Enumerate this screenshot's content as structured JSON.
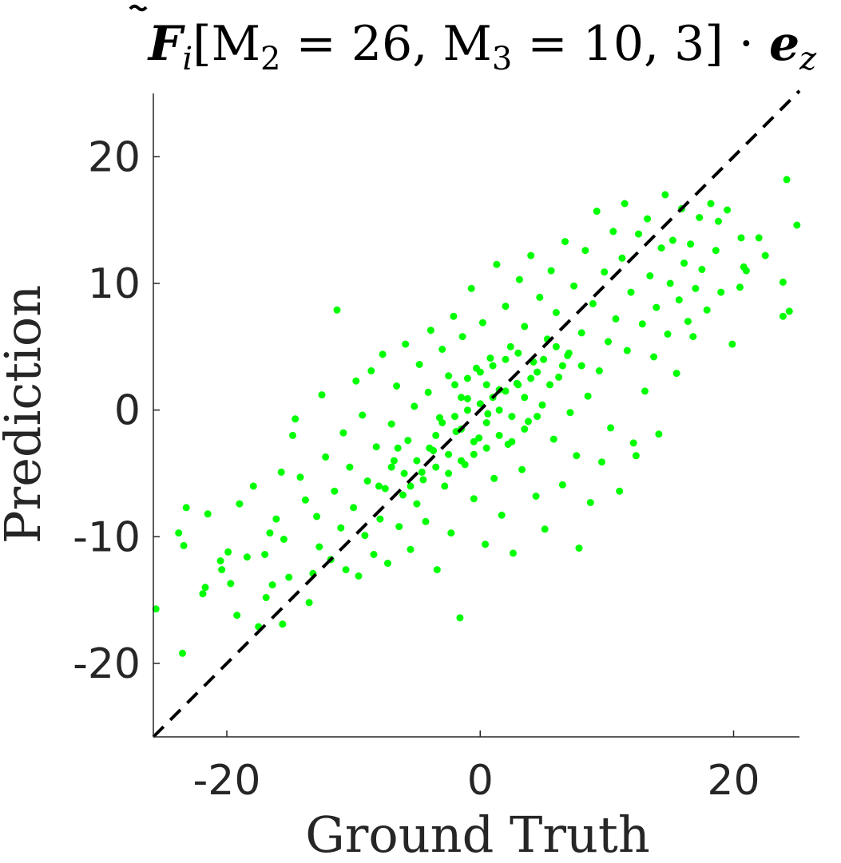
{
  "chart_data": {
    "type": "scatter",
    "title": "F̃ᵢ[M₂ = 26, M₃ = 10, 3] · e_z",
    "title_parts": {
      "vector": "F",
      "vector_sub": "i",
      "args": "[M",
      "m2_sub": "2",
      "m2_value": " = 26, M",
      "m3_sub": "3",
      "m3_value": " = 10, 3] · ",
      "unit_vector": "e",
      "unit_sub": "z"
    },
    "xlabel": "Ground Truth",
    "ylabel": "Prediction",
    "xlim": [
      -25.8,
      25.2
    ],
    "ylim": [
      -25.8,
      25.0
    ],
    "xticks": [
      -20,
      0,
      20
    ],
    "xtick_labels": [
      "-20",
      "0",
      "20"
    ],
    "yticks": [
      -20,
      -10,
      0,
      10,
      20
    ],
    "ytick_labels": [
      "-20",
      "-10",
      "0",
      "10",
      "20"
    ],
    "grid": false,
    "legend": "none",
    "colors": {
      "points": "#00ff00",
      "reference_line": "#000000",
      "axes": "#262626"
    },
    "reference_line": {
      "style": "dashed",
      "from": [
        -25.8,
        -25.8
      ],
      "to": [
        25.2,
        25.2
      ]
    },
    "series": [
      {
        "points": [
          [
            -25.6,
            -15.7
          ],
          [
            -23.5,
            -19.2
          ],
          [
            -23.2,
            -7.7
          ],
          [
            -23.4,
            -10.7
          ],
          [
            -23.8,
            -9.7
          ],
          [
            -21.7,
            -14.0
          ],
          [
            -21.9,
            -14.5
          ],
          [
            -21.5,
            -8.2
          ],
          [
            -20.5,
            -11.9
          ],
          [
            -20.4,
            -12.6
          ],
          [
            -19.9,
            -11.2
          ],
          [
            -19.2,
            -16.2
          ],
          [
            -19.7,
            -13.7
          ],
          [
            -19.0,
            -7.4
          ],
          [
            -18.4,
            -11.6
          ],
          [
            -17.9,
            -6.0
          ],
          [
            -17.5,
            -17.1
          ],
          [
            -17.0,
            -11.4
          ],
          [
            -16.9,
            -14.8
          ],
          [
            -16.6,
            -9.7
          ],
          [
            -16.4,
            -13.8
          ],
          [
            -16.1,
            -8.6
          ],
          [
            -15.7,
            -4.9
          ],
          [
            -15.5,
            -10.2
          ],
          [
            -15.1,
            -13.2
          ],
          [
            -15.6,
            -16.9
          ],
          [
            -14.8,
            -2.0
          ],
          [
            -14.6,
            -0.7
          ],
          [
            -14.2,
            -5.3
          ],
          [
            -13.8,
            -7.1
          ],
          [
            -13.5,
            -15.2
          ],
          [
            -13.2,
            -12.9
          ],
          [
            -12.9,
            -8.4
          ],
          [
            -12.7,
            -10.8
          ],
          [
            -12.5,
            1.2
          ],
          [
            -12.2,
            -3.7
          ],
          [
            -11.8,
            -11.8
          ],
          [
            -11.5,
            -6.4
          ],
          [
            -11.3,
            7.9
          ],
          [
            -11.0,
            -9.3
          ],
          [
            -10.8,
            -1.8
          ],
          [
            -10.6,
            -12.6
          ],
          [
            -10.3,
            -4.5
          ],
          [
            -10.0,
            -7.7
          ],
          [
            -9.8,
            2.3
          ],
          [
            -9.6,
            -13.1
          ],
          [
            -9.3,
            -0.4
          ],
          [
            -9.1,
            -9.9
          ],
          [
            -8.9,
            -5.6
          ],
          [
            -8.6,
            3.1
          ],
          [
            -8.4,
            -11.4
          ],
          [
            -8.2,
            -2.9
          ],
          [
            -7.9,
            -8.6
          ],
          [
            -7.7,
            4.4
          ],
          [
            -7.5,
            -6.2
          ],
          [
            -7.3,
            -12.1
          ],
          [
            -7.0,
            -1.1
          ],
          [
            -6.8,
            -4.0
          ],
          [
            -6.6,
            1.9
          ],
          [
            -6.4,
            -9.2
          ],
          [
            -6.1,
            -6.7
          ],
          [
            -5.9,
            5.2
          ],
          [
            -5.7,
            -2.4
          ],
          [
            -5.5,
            -11.0
          ],
          [
            -5.2,
            0.3
          ],
          [
            -5.0,
            -7.4
          ],
          [
            -4.8,
            3.6
          ],
          [
            -4.6,
            -4.9
          ],
          [
            -4.3,
            -8.8
          ],
          [
            -4.1,
            1.4
          ],
          [
            -3.9,
            6.3
          ],
          [
            -3.7,
            -3.2
          ],
          [
            -3.4,
            -12.6
          ],
          [
            -3.2,
            -0.6
          ],
          [
            -3.0,
            4.8
          ],
          [
            -2.8,
            -6.0
          ],
          [
            -2.5,
            2.7
          ],
          [
            -2.3,
            -9.7
          ],
          [
            -2.1,
            7.4
          ],
          [
            -1.9,
            -1.7
          ],
          [
            -1.6,
            -16.4
          ],
          [
            -1.4,
            5.8
          ],
          [
            -1.2,
            -4.3
          ],
          [
            -1.0,
            0.9
          ],
          [
            -0.7,
            9.6
          ],
          [
            -0.5,
            -7.0
          ],
          [
            -0.3,
            3.3
          ],
          [
            -0.1,
            -2.2
          ],
          [
            0.2,
            6.9
          ],
          [
            0.4,
            -10.6
          ],
          [
            0.6,
            -0.3
          ],
          [
            0.8,
            4.1
          ],
          [
            1.1,
            -5.4
          ],
          [
            1.3,
            11.5
          ],
          [
            1.5,
            1.6
          ],
          [
            1.7,
            -8.3
          ],
          [
            2.0,
            8.2
          ],
          [
            2.2,
            -2.7
          ],
          [
            2.4,
            5.0
          ],
          [
            2.6,
            -11.3
          ],
          [
            2.9,
            2.1
          ],
          [
            3.1,
            10.3
          ],
          [
            3.3,
            -4.7
          ],
          [
            3.5,
            6.6
          ],
          [
            3.8,
            -0.9
          ],
          [
            4.0,
            12.2
          ],
          [
            4.2,
            3.8
          ],
          [
            4.4,
            -6.8
          ],
          [
            4.7,
            8.9
          ],
          [
            4.9,
            0.4
          ],
          [
            5.1,
            -9.4
          ],
          [
            5.3,
            5.6
          ],
          [
            5.6,
            11.0
          ],
          [
            5.8,
            -2.3
          ],
          [
            6.0,
            7.7
          ],
          [
            6.2,
            2.6
          ],
          [
            6.5,
            -5.9
          ],
          [
            6.7,
            13.3
          ],
          [
            6.9,
            4.3
          ],
          [
            7.1,
            -0.2
          ],
          [
            7.4,
            9.8
          ],
          [
            7.6,
            -3.6
          ],
          [
            7.8,
            -10.9
          ],
          [
            8.0,
            6.1
          ],
          [
            8.3,
            12.6
          ],
          [
            8.5,
            1.1
          ],
          [
            8.7,
            -7.3
          ],
          [
            8.9,
            8.4
          ],
          [
            9.2,
            15.7
          ],
          [
            9.4,
            3.1
          ],
          [
            9.6,
            -4.1
          ],
          [
            9.8,
            10.9
          ],
          [
            10.1,
            5.4
          ],
          [
            10.3,
            -1.4
          ],
          [
            10.5,
            14.1
          ],
          [
            10.7,
            7.2
          ],
          [
            11.0,
            -6.4
          ],
          [
            11.2,
            12.0
          ],
          [
            11.4,
            16.3
          ],
          [
            11.6,
            4.7
          ],
          [
            11.9,
            9.3
          ],
          [
            12.1,
            -2.6
          ],
          [
            12.3,
            -3.6
          ],
          [
            12.5,
            13.9
          ],
          [
            12.8,
            6.8
          ],
          [
            13.0,
            1.5
          ],
          [
            13.2,
            15.1
          ],
          [
            13.4,
            10.6
          ],
          [
            13.7,
            4.2
          ],
          [
            13.9,
            8.1
          ],
          [
            14.1,
            -1.9
          ],
          [
            14.3,
            12.8
          ],
          [
            14.6,
            17.0
          ],
          [
            14.8,
            6.0
          ],
          [
            15.0,
            10.0
          ],
          [
            15.2,
            13.4
          ],
          [
            15.5,
            2.9
          ],
          [
            15.7,
            8.7
          ],
          [
            15.9,
            15.9
          ],
          [
            16.1,
            11.6
          ],
          [
            16.4,
            7.0
          ],
          [
            16.6,
            13.1
          ],
          [
            16.8,
            5.8
          ],
          [
            17.0,
            9.6
          ],
          [
            17.3,
            15.2
          ],
          [
            17.5,
            11.1
          ],
          [
            17.9,
            7.9
          ],
          [
            18.2,
            16.3
          ],
          [
            18.6,
            12.6
          ],
          [
            19.0,
            9.3
          ],
          [
            19.5,
            15.8
          ],
          [
            19.9,
            5.2
          ],
          [
            20.6,
            13.6
          ],
          [
            20.5,
            9.7
          ],
          [
            21.0,
            11.0
          ],
          [
            22.0,
            13.6
          ],
          [
            22.5,
            12.2
          ],
          [
            23.9,
            10.1
          ],
          [
            23.9,
            7.4
          ],
          [
            24.2,
            18.2
          ],
          [
            24.4,
            7.8
          ],
          [
            25.0,
            14.6
          ],
          [
            18.8,
            14.9
          ],
          [
            20.8,
            11.3
          ],
          [
            -3.0,
            -1.0
          ],
          [
            -2.0,
            -0.5
          ],
          [
            -1.0,
            0.0
          ],
          [
            0.0,
            0.5
          ],
          [
            1.0,
            1.0
          ],
          [
            2.0,
            1.5
          ],
          [
            3.0,
            2.0
          ],
          [
            4.0,
            2.5
          ],
          [
            -4.0,
            -3.0
          ],
          [
            -3.5,
            -2.0
          ],
          [
            -2.5,
            -3.5
          ],
          [
            -1.5,
            -1.5
          ],
          [
            -0.5,
            -2.5
          ],
          [
            0.5,
            -1.0
          ],
          [
            1.5,
            0.0
          ],
          [
            2.5,
            -0.5
          ],
          [
            3.5,
            1.0
          ],
          [
            4.5,
            3.0
          ],
          [
            5.5,
            2.0
          ],
          [
            6.5,
            3.5
          ],
          [
            5.0,
            4.0
          ],
          [
            6.0,
            5.0
          ],
          [
            7.0,
            4.5
          ],
          [
            8.0,
            3.5
          ],
          [
            -5.0,
            -4.0
          ],
          [
            -6.0,
            -5.0
          ],
          [
            -7.0,
            -4.5
          ],
          [
            -6.5,
            -3.0
          ],
          [
            -5.5,
            -6.0
          ],
          [
            -4.5,
            -5.5
          ],
          [
            -3.5,
            -4.5
          ],
          [
            -8.0,
            -6.0
          ],
          [
            -2.0,
            2.0
          ],
          [
            -1.0,
            2.5
          ],
          [
            0.0,
            3.0
          ],
          [
            1.0,
            3.5
          ],
          [
            2.0,
            4.0
          ],
          [
            3.0,
            4.5
          ],
          [
            -1.5,
            1.0
          ],
          [
            0.5,
            2.0
          ],
          [
            -2.5,
            -5.0
          ],
          [
            -1.5,
            -4.0
          ],
          [
            -0.5,
            -3.5
          ],
          [
            0.5,
            -3.0
          ],
          [
            1.5,
            -2.0
          ],
          [
            2.5,
            -2.5
          ],
          [
            3.5,
            -1.5
          ],
          [
            4.5,
            -0.5
          ]
        ]
      }
    ]
  }
}
